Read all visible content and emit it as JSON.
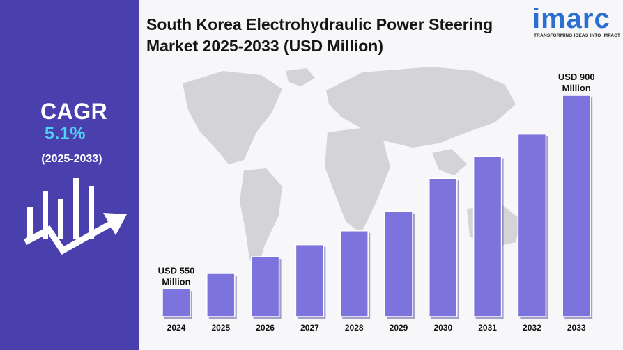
{
  "title": "South Korea Electrohydraulic Power Steering Market 2025-2033 (USD Million)",
  "sidebar": {
    "cagr_label": "CAGR",
    "cagr_value": "5.1%",
    "cagr_period": "(2025-2033)"
  },
  "logo": {
    "name": "imarc",
    "tagline": "TRANSFORMING IDEAS INTO IMPACT"
  },
  "colors": {
    "sidebar_bg": "#4a40ad",
    "accent_value": "#4fd3f0",
    "bar_fill": "#7d73dc",
    "logo_blue": "#2a6fd1"
  },
  "chart_data": {
    "type": "bar",
    "title": "South Korea Electrohydraulic Power Steering Market 2025-2033 (USD Million)",
    "categories": [
      "2024",
      "2025",
      "2026",
      "2027",
      "2028",
      "2029",
      "2030",
      "2031",
      "2032",
      "2033"
    ],
    "values": [
      550,
      578,
      608,
      630,
      655,
      690,
      750,
      790,
      830,
      900
    ],
    "value_labels": [
      {
        "index": 0,
        "lines": [
          "USD 550",
          "Million"
        ]
      },
      {
        "index": 9,
        "lines": [
          "USD 900",
          "Million"
        ]
      }
    ],
    "xlabel": "",
    "ylabel": "",
    "ylim": [
      400,
      950
    ],
    "grid": false,
    "legend": "none"
  }
}
